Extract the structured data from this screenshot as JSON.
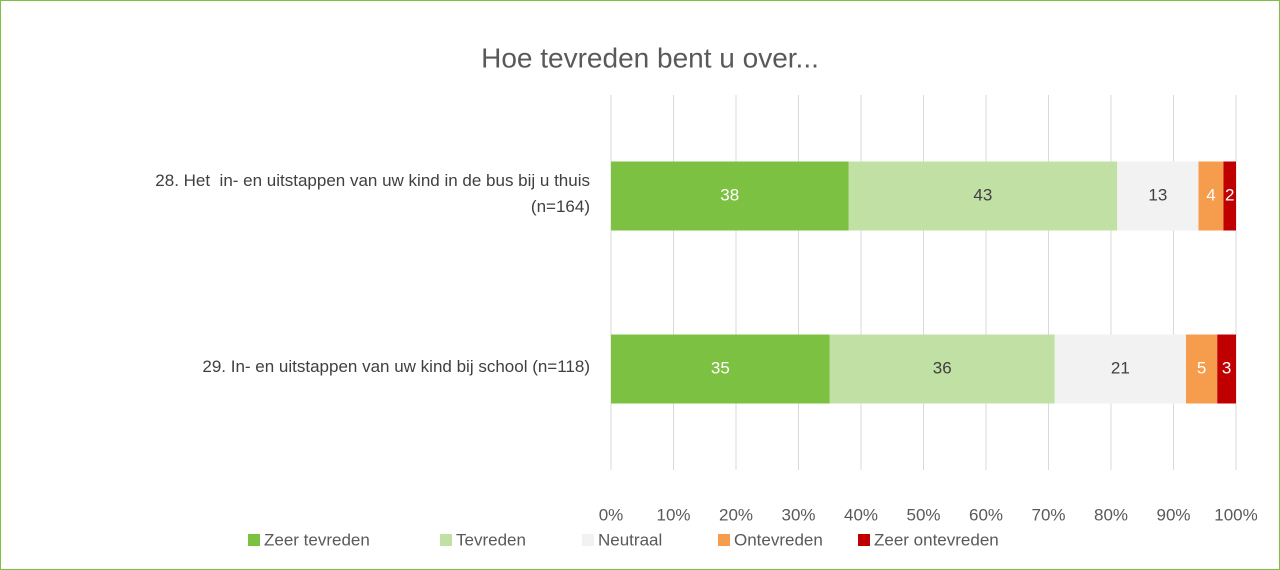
{
  "chart_data": {
    "type": "stacked_barh",
    "title": "Hoe tevreden bent u over...",
    "categories": [
      "28. Het  in- en uitstappen van uw kind in de bus bij u thuis\n(n=164)",
      "29. In- en uitstappen van uw kind bij school (n=118)"
    ],
    "series": [
      {
        "name": "Zeer tevreden",
        "color": "#7dc142",
        "values": [
          38,
          35
        ]
      },
      {
        "name": "Tevreden",
        "color": "#c0e0a4",
        "values": [
          43,
          36
        ]
      },
      {
        "name": "Neutraal",
        "color": "#f2f2f2",
        "values": [
          13,
          21
        ]
      },
      {
        "name": "Ontevreden",
        "color": "#f59d4c",
        "values": [
          4,
          5
        ]
      },
      {
        "name": "Zeer ontevreden",
        "color": "#c00000",
        "values": [
          2,
          3
        ]
      }
    ],
    "xlim": [
      0,
      100
    ],
    "xticks": [
      {
        "value": 0,
        "label": "0%"
      },
      {
        "value": 10,
        "label": "10%"
      },
      {
        "value": 20,
        "label": "20%"
      },
      {
        "value": 30,
        "label": "30%"
      },
      {
        "value": 40,
        "label": "40%"
      },
      {
        "value": 50,
        "label": "50%"
      },
      {
        "value": 60,
        "label": "60%"
      },
      {
        "value": 70,
        "label": "70%"
      },
      {
        "value": 80,
        "label": "80%"
      },
      {
        "value": 90,
        "label": "90%"
      },
      {
        "value": 100,
        "label": "100%"
      }
    ],
    "grid": true,
    "legend": "bottom"
  }
}
